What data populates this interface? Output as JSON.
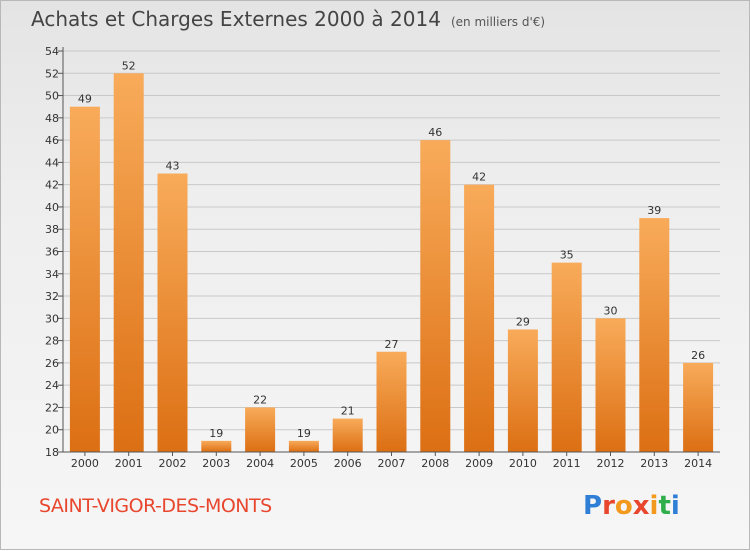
{
  "header": {
    "title": "Achats et Charges Externes 2000 à 2014",
    "subtitle": "(en milliers d'€)"
  },
  "footer": {
    "commune": "SAINT-VIGOR-DES-MONTS",
    "logo": "Proxiti",
    "logo_colors": [
      "#2f7fd6",
      "#e8472e",
      "#f39a1e",
      "#e8472e",
      "#f39a1e",
      "#2fae4b",
      "#2f7fd6"
    ]
  },
  "colors": {
    "bar_top": "#f8ab5a",
    "bar_bottom": "#dc6f13",
    "grid": "#c9c9c9",
    "axis": "#555555"
  },
  "chart_data": {
    "type": "bar",
    "categories": [
      "2000",
      "2001",
      "2002",
      "2003",
      "2004",
      "2005",
      "2006",
      "2007",
      "2008",
      "2009",
      "2010",
      "2011",
      "2012",
      "2013",
      "2014"
    ],
    "values": [
      49,
      52,
      43,
      19,
      22,
      19,
      21,
      27,
      46,
      42,
      29,
      35,
      30,
      39,
      26
    ],
    "ylim": [
      18,
      54
    ],
    "ytick_step": 2,
    "yticks": [
      "18",
      "20",
      "22",
      "24",
      "26",
      "28",
      "30",
      "32",
      "34",
      "36",
      "38",
      "40",
      "42",
      "44",
      "46",
      "48",
      "50",
      "52",
      "54"
    ],
    "grid": true
  }
}
